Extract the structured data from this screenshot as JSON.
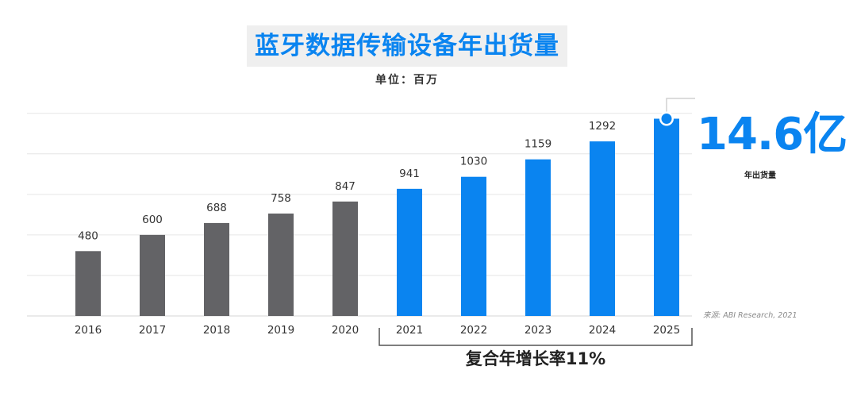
{
  "header": {
    "title": "蓝牙数据传输设备年出货量",
    "unit": "单位：百万"
  },
  "highlight": {
    "value": "14.6亿",
    "label": "年出货量"
  },
  "source": "来源: ABI Research, 2021",
  "cagr_label": "复合年增长率11%",
  "colors": {
    "historical": "#636366",
    "forecast": "#0a84f0",
    "grid": "#e6e6e6"
  },
  "chart_data": {
    "type": "bar",
    "categories": [
      "2016",
      "2017",
      "2018",
      "2019",
      "2020",
      "2021",
      "2022",
      "2023",
      "2024",
      "2025"
    ],
    "values": [
      480,
      600,
      688,
      758,
      847,
      941,
      1030,
      1159,
      1292,
      1460
    ],
    "data_labels": [
      "480",
      "600",
      "688",
      "758",
      "847",
      "941",
      "1030",
      "1159",
      "1292",
      ""
    ],
    "series_color_split": {
      "historical_until": "2020"
    },
    "ylim": [
      0,
      1500
    ],
    "grid": true,
    "title": "蓝牙数据传输设备年出货量",
    "ylabel": "单位：百万",
    "xlabel": ""
  }
}
